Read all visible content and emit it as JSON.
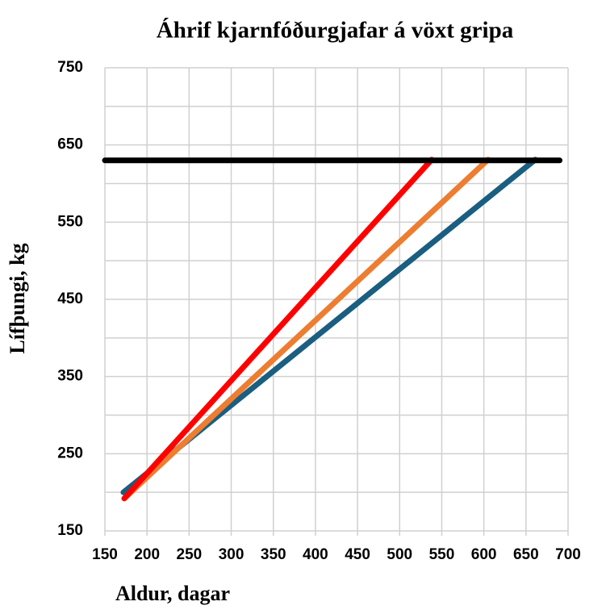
{
  "chart_data": {
    "type": "line",
    "title": "Áhrif kjarnfóðurgjafar á vöxt gripa",
    "x_label": "Aldur, dagar",
    "y_label": "Lífþungi, kg",
    "xlim": [
      150,
      700
    ],
    "xticks": [
      150,
      200,
      250,
      300,
      350,
      400,
      450,
      500,
      550,
      600,
      650,
      700
    ],
    "ylim": [
      150,
      750
    ],
    "yticks": [
      150,
      250,
      350,
      450,
      550,
      650,
      750
    ],
    "y_minor_grid": [
      200,
      300,
      400,
      500,
      600,
      700
    ],
    "grid": true,
    "series": [
      {
        "color": "#1a5e80",
        "x": [
          172,
          661
        ],
        "values": [
          200,
          631
        ]
      },
      {
        "color": "#ed7d31",
        "x": [
          174,
          605
        ],
        "values": [
          193,
          631
        ]
      },
      {
        "color": "#ff0000",
        "x": [
          173,
          538
        ],
        "values": [
          192,
          631
        ]
      },
      {
        "color": "#000000",
        "x": [
          150,
          690
        ],
        "values": [
          630,
          630
        ]
      }
    ]
  }
}
